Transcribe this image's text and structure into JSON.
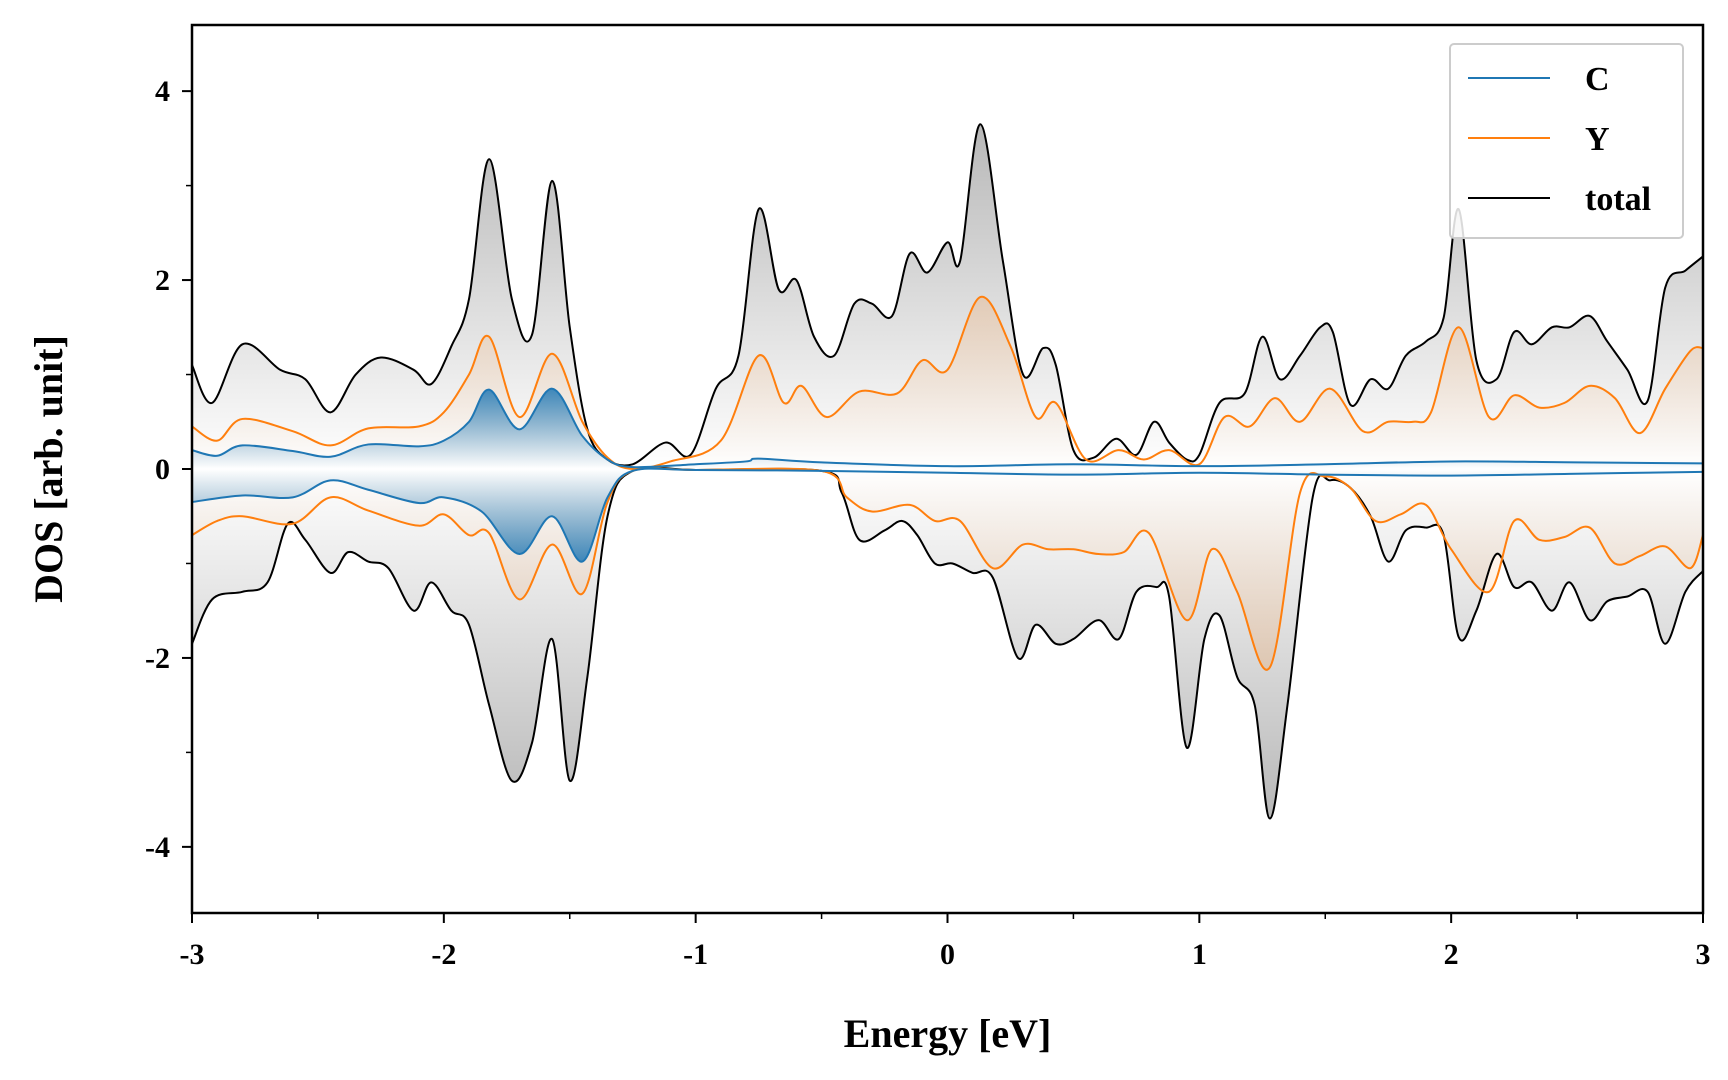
{
  "chart_data": {
    "type": "line",
    "title": "",
    "xlabel": "Energy [eV]",
    "ylabel": "DOS [arb. unit]",
    "xlim": [
      -3,
      3
    ],
    "ylim": [
      -4.7,
      4.7
    ],
    "xticks": [
      -3,
      -2,
      -1,
      0,
      1,
      2,
      3
    ],
    "xtick_labels": [
      "-3",
      "-2",
      "-1",
      "0",
      "1",
      "2",
      "3"
    ],
    "yticks": [
      -4,
      -2,
      0,
      2,
      4
    ],
    "ytick_labels": [
      "-4",
      "-2",
      "0",
      "2",
      "4"
    ],
    "grid": false,
    "legend_position": "top-right",
    "fill_between": true,
    "colors": {
      "C": "#1f77b4",
      "Y": "#ff7f0e",
      "total": "#000000"
    },
    "series": [
      {
        "name": "C",
        "spin": "up",
        "x": [
          -3.0,
          -2.9,
          -2.8,
          -2.6,
          -2.45,
          -2.3,
          -2.1,
          -2.0,
          -1.9,
          -1.82,
          -1.7,
          -1.57,
          -1.45,
          -1.35,
          -1.25,
          -1.0,
          -0.8,
          -0.75,
          -0.5,
          0.0,
          0.5,
          1.0,
          1.5,
          2.0,
          2.5,
          3.0
        ],
        "y": [
          0.2,
          0.14,
          0.25,
          0.19,
          0.13,
          0.26,
          0.24,
          0.3,
          0.5,
          0.84,
          0.42,
          0.85,
          0.35,
          0.1,
          0.02,
          0.05,
          0.08,
          0.11,
          0.07,
          0.03,
          0.05,
          0.03,
          0.05,
          0.08,
          0.07,
          0.06
        ]
      },
      {
        "name": "C",
        "spin": "down",
        "x": [
          -3.0,
          -2.8,
          -2.6,
          -2.45,
          -2.3,
          -2.1,
          -2.0,
          -1.85,
          -1.7,
          -1.57,
          -1.45,
          -1.35,
          -1.25,
          -1.0,
          -0.5,
          0.0,
          0.5,
          1.0,
          1.5,
          2.0,
          2.5,
          3.0
        ],
        "y": [
          -0.35,
          -0.28,
          -0.3,
          -0.12,
          -0.22,
          -0.36,
          -0.3,
          -0.45,
          -0.9,
          -0.5,
          -0.98,
          -0.3,
          -0.02,
          -0.01,
          -0.02,
          -0.04,
          -0.06,
          -0.04,
          -0.06,
          -0.07,
          -0.05,
          -0.03
        ]
      },
      {
        "name": "Y",
        "spin": "up",
        "x": [
          -3.0,
          -2.9,
          -2.8,
          -2.6,
          -2.45,
          -2.3,
          -2.1,
          -2.0,
          -1.9,
          -1.82,
          -1.7,
          -1.57,
          -1.45,
          -1.35,
          -1.25,
          -1.1,
          -0.9,
          -0.75,
          -0.65,
          -0.58,
          -0.48,
          -0.35,
          -0.2,
          -0.1,
          0.0,
          0.13,
          0.25,
          0.35,
          0.43,
          0.55,
          0.68,
          0.78,
          0.88,
          1.0,
          1.1,
          1.2,
          1.3,
          1.4,
          1.52,
          1.65,
          1.75,
          1.85,
          1.92,
          2.03,
          2.15,
          2.25,
          2.35,
          2.45,
          2.55,
          2.65,
          2.75,
          2.85,
          2.95,
          3.0
        ],
        "y": [
          0.45,
          0.3,
          0.53,
          0.4,
          0.25,
          0.43,
          0.45,
          0.6,
          1.0,
          1.4,
          0.55,
          1.22,
          0.5,
          0.12,
          0.0,
          0.08,
          0.3,
          1.2,
          0.7,
          0.88,
          0.55,
          0.82,
          0.8,
          1.15,
          1.05,
          1.82,
          1.3,
          0.55,
          0.7,
          0.1,
          0.2,
          0.1,
          0.2,
          0.05,
          0.55,
          0.45,
          0.75,
          0.5,
          0.85,
          0.4,
          0.5,
          0.5,
          0.6,
          1.5,
          0.55,
          0.78,
          0.65,
          0.7,
          0.88,
          0.75,
          0.38,
          0.85,
          1.25,
          1.28
        ]
      },
      {
        "name": "Y",
        "spin": "down",
        "x": [
          -3.0,
          -2.9,
          -2.8,
          -2.6,
          -2.45,
          -2.3,
          -2.1,
          -2.0,
          -1.9,
          -1.82,
          -1.7,
          -1.57,
          -1.45,
          -1.35,
          -1.25,
          -1.0,
          -0.5,
          -0.4,
          -0.3,
          -0.15,
          -0.05,
          0.05,
          0.18,
          0.3,
          0.4,
          0.5,
          0.6,
          0.7,
          0.8,
          0.95,
          1.05,
          1.15,
          1.28,
          1.4,
          1.5,
          1.6,
          1.7,
          1.8,
          1.9,
          2.0,
          2.15,
          2.25,
          2.35,
          2.45,
          2.55,
          2.65,
          2.75,
          2.85,
          2.95,
          3.0
        ],
        "y": [
          -0.7,
          -0.55,
          -0.5,
          -0.58,
          -0.3,
          -0.44,
          -0.6,
          -0.48,
          -0.7,
          -0.68,
          -1.38,
          -0.8,
          -1.32,
          -0.35,
          -0.02,
          -0.01,
          -0.02,
          -0.3,
          -0.45,
          -0.38,
          -0.55,
          -0.55,
          -1.05,
          -0.8,
          -0.85,
          -0.85,
          -0.9,
          -0.88,
          -0.68,
          -1.6,
          -0.85,
          -1.3,
          -2.1,
          -0.25,
          -0.08,
          -0.2,
          -0.55,
          -0.48,
          -0.38,
          -0.85,
          -1.3,
          -0.55,
          -0.75,
          -0.72,
          -0.62,
          -1.0,
          -0.92,
          -0.82,
          -1.05,
          -0.7
        ]
      },
      {
        "name": "total",
        "spin": "up",
        "x": [
          -3.0,
          -2.92,
          -2.8,
          -2.65,
          -2.55,
          -2.45,
          -2.35,
          -2.25,
          -2.12,
          -2.05,
          -1.97,
          -1.9,
          -1.82,
          -1.73,
          -1.65,
          -1.57,
          -1.5,
          -1.43,
          -1.35,
          -1.25,
          -1.12,
          -1.02,
          -0.92,
          -0.83,
          -0.75,
          -0.67,
          -0.6,
          -0.53,
          -0.45,
          -0.37,
          -0.3,
          -0.22,
          -0.15,
          -0.08,
          0.0,
          0.05,
          0.13,
          0.22,
          0.3,
          0.38,
          0.43,
          0.5,
          0.58,
          0.67,
          0.75,
          0.82,
          0.88,
          0.95,
          1.0,
          1.08,
          1.18,
          1.25,
          1.32,
          1.4,
          1.48,
          1.53,
          1.6,
          1.68,
          1.75,
          1.82,
          1.9,
          1.97,
          2.03,
          2.1,
          2.18,
          2.25,
          2.32,
          2.4,
          2.47,
          2.55,
          2.62,
          2.7,
          2.78,
          2.85,
          2.93,
          3.0
        ],
        "y": [
          1.1,
          0.7,
          1.32,
          1.05,
          0.95,
          0.6,
          1.0,
          1.18,
          1.05,
          0.9,
          1.3,
          1.8,
          3.28,
          1.8,
          1.42,
          3.05,
          1.5,
          0.42,
          0.1,
          0.05,
          0.28,
          0.15,
          0.85,
          1.2,
          2.75,
          1.9,
          2.0,
          1.4,
          1.2,
          1.75,
          1.75,
          1.62,
          2.28,
          2.08,
          2.4,
          2.2,
          3.65,
          2.2,
          1.0,
          1.28,
          1.1,
          0.2,
          0.12,
          0.32,
          0.15,
          0.5,
          0.28,
          0.1,
          0.15,
          0.7,
          0.8,
          1.4,
          0.95,
          1.2,
          1.5,
          1.45,
          0.68,
          0.95,
          0.85,
          1.2,
          1.35,
          1.6,
          2.75,
          1.15,
          0.95,
          1.45,
          1.32,
          1.5,
          1.5,
          1.62,
          1.35,
          1.05,
          0.72,
          1.92,
          2.1,
          2.25
        ]
      },
      {
        "name": "total",
        "spin": "down",
        "x": [
          -3.0,
          -2.92,
          -2.8,
          -2.7,
          -2.62,
          -2.55,
          -2.45,
          -2.38,
          -2.3,
          -2.22,
          -2.12,
          -2.05,
          -1.97,
          -1.9,
          -1.82,
          -1.73,
          -1.65,
          -1.57,
          -1.5,
          -1.43,
          -1.35,
          -1.25,
          -1.0,
          -0.5,
          -0.42,
          -0.35,
          -0.25,
          -0.18,
          -0.12,
          -0.05,
          0.02,
          0.1,
          0.18,
          0.28,
          0.35,
          0.43,
          0.5,
          0.6,
          0.68,
          0.75,
          0.83,
          0.88,
          0.95,
          1.02,
          1.08,
          1.15,
          1.22,
          1.28,
          1.35,
          1.45,
          1.52,
          1.6,
          1.68,
          1.75,
          1.82,
          1.9,
          1.97,
          2.03,
          2.1,
          2.18,
          2.25,
          2.32,
          2.4,
          2.47,
          2.55,
          2.62,
          2.7,
          2.78,
          2.85,
          2.93,
          3.0
        ],
        "y": [
          -1.85,
          -1.38,
          -1.3,
          -1.2,
          -0.58,
          -0.75,
          -1.1,
          -0.88,
          -0.98,
          -1.05,
          -1.5,
          -1.2,
          -1.5,
          -1.65,
          -2.5,
          -3.3,
          -2.9,
          -1.8,
          -3.3,
          -2.2,
          -0.5,
          -0.02,
          -0.01,
          -0.02,
          -0.25,
          -0.75,
          -0.65,
          -0.55,
          -0.7,
          -1.0,
          -1.0,
          -1.1,
          -1.15,
          -2.0,
          -1.65,
          -1.85,
          -1.8,
          -1.6,
          -1.8,
          -1.3,
          -1.25,
          -1.35,
          -2.95,
          -1.8,
          -1.55,
          -2.2,
          -2.5,
          -3.7,
          -2.5,
          -0.3,
          -0.12,
          -0.2,
          -0.5,
          -0.98,
          -0.65,
          -0.62,
          -0.7,
          -1.78,
          -1.5,
          -0.9,
          -1.25,
          -1.2,
          -1.5,
          -1.2,
          -1.6,
          -1.4,
          -1.35,
          -1.3,
          -1.85,
          -1.3,
          -1.08
        ]
      }
    ],
    "legend": [
      {
        "label": "C",
        "color": "#1f77b4"
      },
      {
        "label": "Y",
        "color": "#ff7f0e"
      },
      {
        "label": "total",
        "color": "#000000"
      }
    ]
  }
}
